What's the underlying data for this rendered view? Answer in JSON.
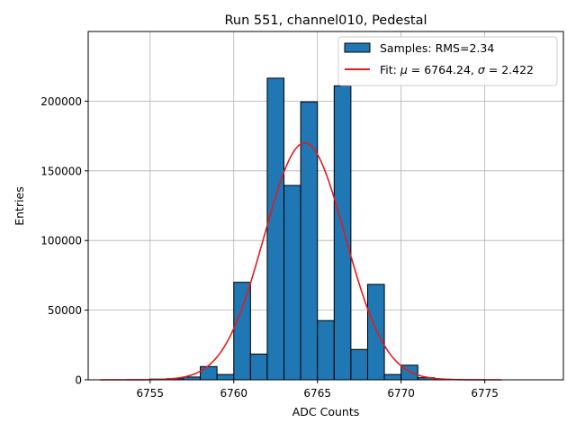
{
  "chart_data": {
    "type": "bar",
    "title": "Run 551, channel010, Pedestal",
    "xlabel": "ADC Counts",
    "ylabel": "Entries",
    "xlim": [
      6751.3,
      6779.7
    ],
    "ylim": [
      0,
      250000
    ],
    "xticks": [
      6755,
      6760,
      6765,
      6770,
      6775
    ],
    "yticks": [
      0,
      50000,
      100000,
      150000,
      200000
    ],
    "grid": true,
    "legend_position": "top-right",
    "histogram": {
      "name": "Samples: RMS=2.34",
      "color": "#1f77b4",
      "bin_width": 1,
      "bin_left_edges": [
        6755,
        6756,
        6757,
        6758,
        6759,
        6760,
        6761,
        6762,
        6763,
        6764,
        6765,
        6766,
        6767,
        6768,
        6769,
        6770,
        6771,
        6772
      ],
      "values": [
        500,
        800,
        2000,
        9500,
        3800,
        70000,
        18500,
        216500,
        139500,
        199500,
        42500,
        211000,
        21800,
        68500,
        3800,
        10500,
        1500,
        400
      ]
    },
    "fit": {
      "name_prefix": "Fit: ",
      "mu_symbol": "μ",
      "sigma_symbol": "σ",
      "mu_text": " = 6764.24, ",
      "sigma_text": " = 2.422",
      "color": "#e41a1c",
      "mu": 6764.24,
      "sigma": 2.422,
      "amplitude": 170000,
      "x_range": [
        6752,
        6776
      ]
    }
  }
}
